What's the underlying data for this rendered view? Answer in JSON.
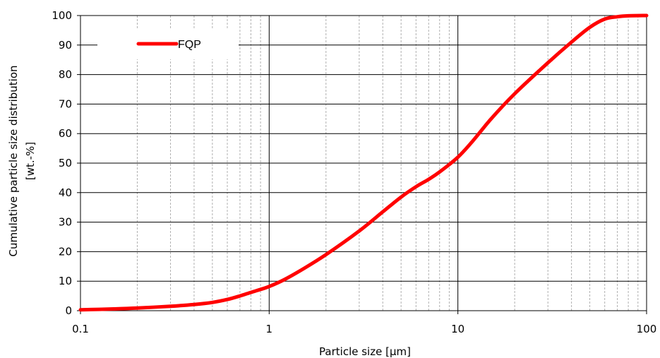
{
  "chart_data": {
    "type": "line",
    "xscale": "log",
    "xlim": [
      0.1,
      100
    ],
    "ylim": [
      0,
      100
    ],
    "xticks": [
      0.1,
      1,
      10,
      100
    ],
    "xtick_labels": [
      "0.1",
      "1",
      "10",
      "100"
    ],
    "yticks": [
      0,
      10,
      20,
      30,
      40,
      50,
      60,
      70,
      80,
      90,
      100
    ],
    "ytick_labels": [
      "0",
      "10",
      "20",
      "30",
      "40",
      "50",
      "60",
      "70",
      "80",
      "90",
      "100"
    ],
    "xlabel": "Particle size [µm]",
    "ylabel": [
      "Cumulative particle size distribution",
      "[wt.-%]"
    ],
    "grid": true,
    "minor_grid_x": true,
    "legend": {
      "position": "top-left",
      "entries": [
        "FQP"
      ]
    },
    "series": [
      {
        "name": "FQP",
        "color": "#ff0000",
        "x": [
          0.1,
          0.15,
          0.2,
          0.3,
          0.4,
          0.5,
          0.6,
          0.7,
          0.8,
          0.9,
          1,
          1.2,
          1.5,
          2,
          3,
          4,
          5,
          6,
          7,
          8,
          10,
          12,
          15,
          20,
          30,
          40,
          50,
          60,
          70,
          80,
          100
        ],
        "values": [
          0.3,
          0.6,
          0.9,
          1.5,
          2.1,
          2.8,
          3.8,
          5.0,
          6.2,
          7.2,
          8.2,
          10.5,
          14.0,
          19.0,
          27.0,
          33.5,
          38.5,
          42.0,
          44.5,
          47.0,
          52.0,
          57.5,
          65.0,
          73.5,
          84.0,
          91.0,
          96.0,
          98.8,
          99.6,
          99.9,
          100.0
        ]
      }
    ]
  }
}
